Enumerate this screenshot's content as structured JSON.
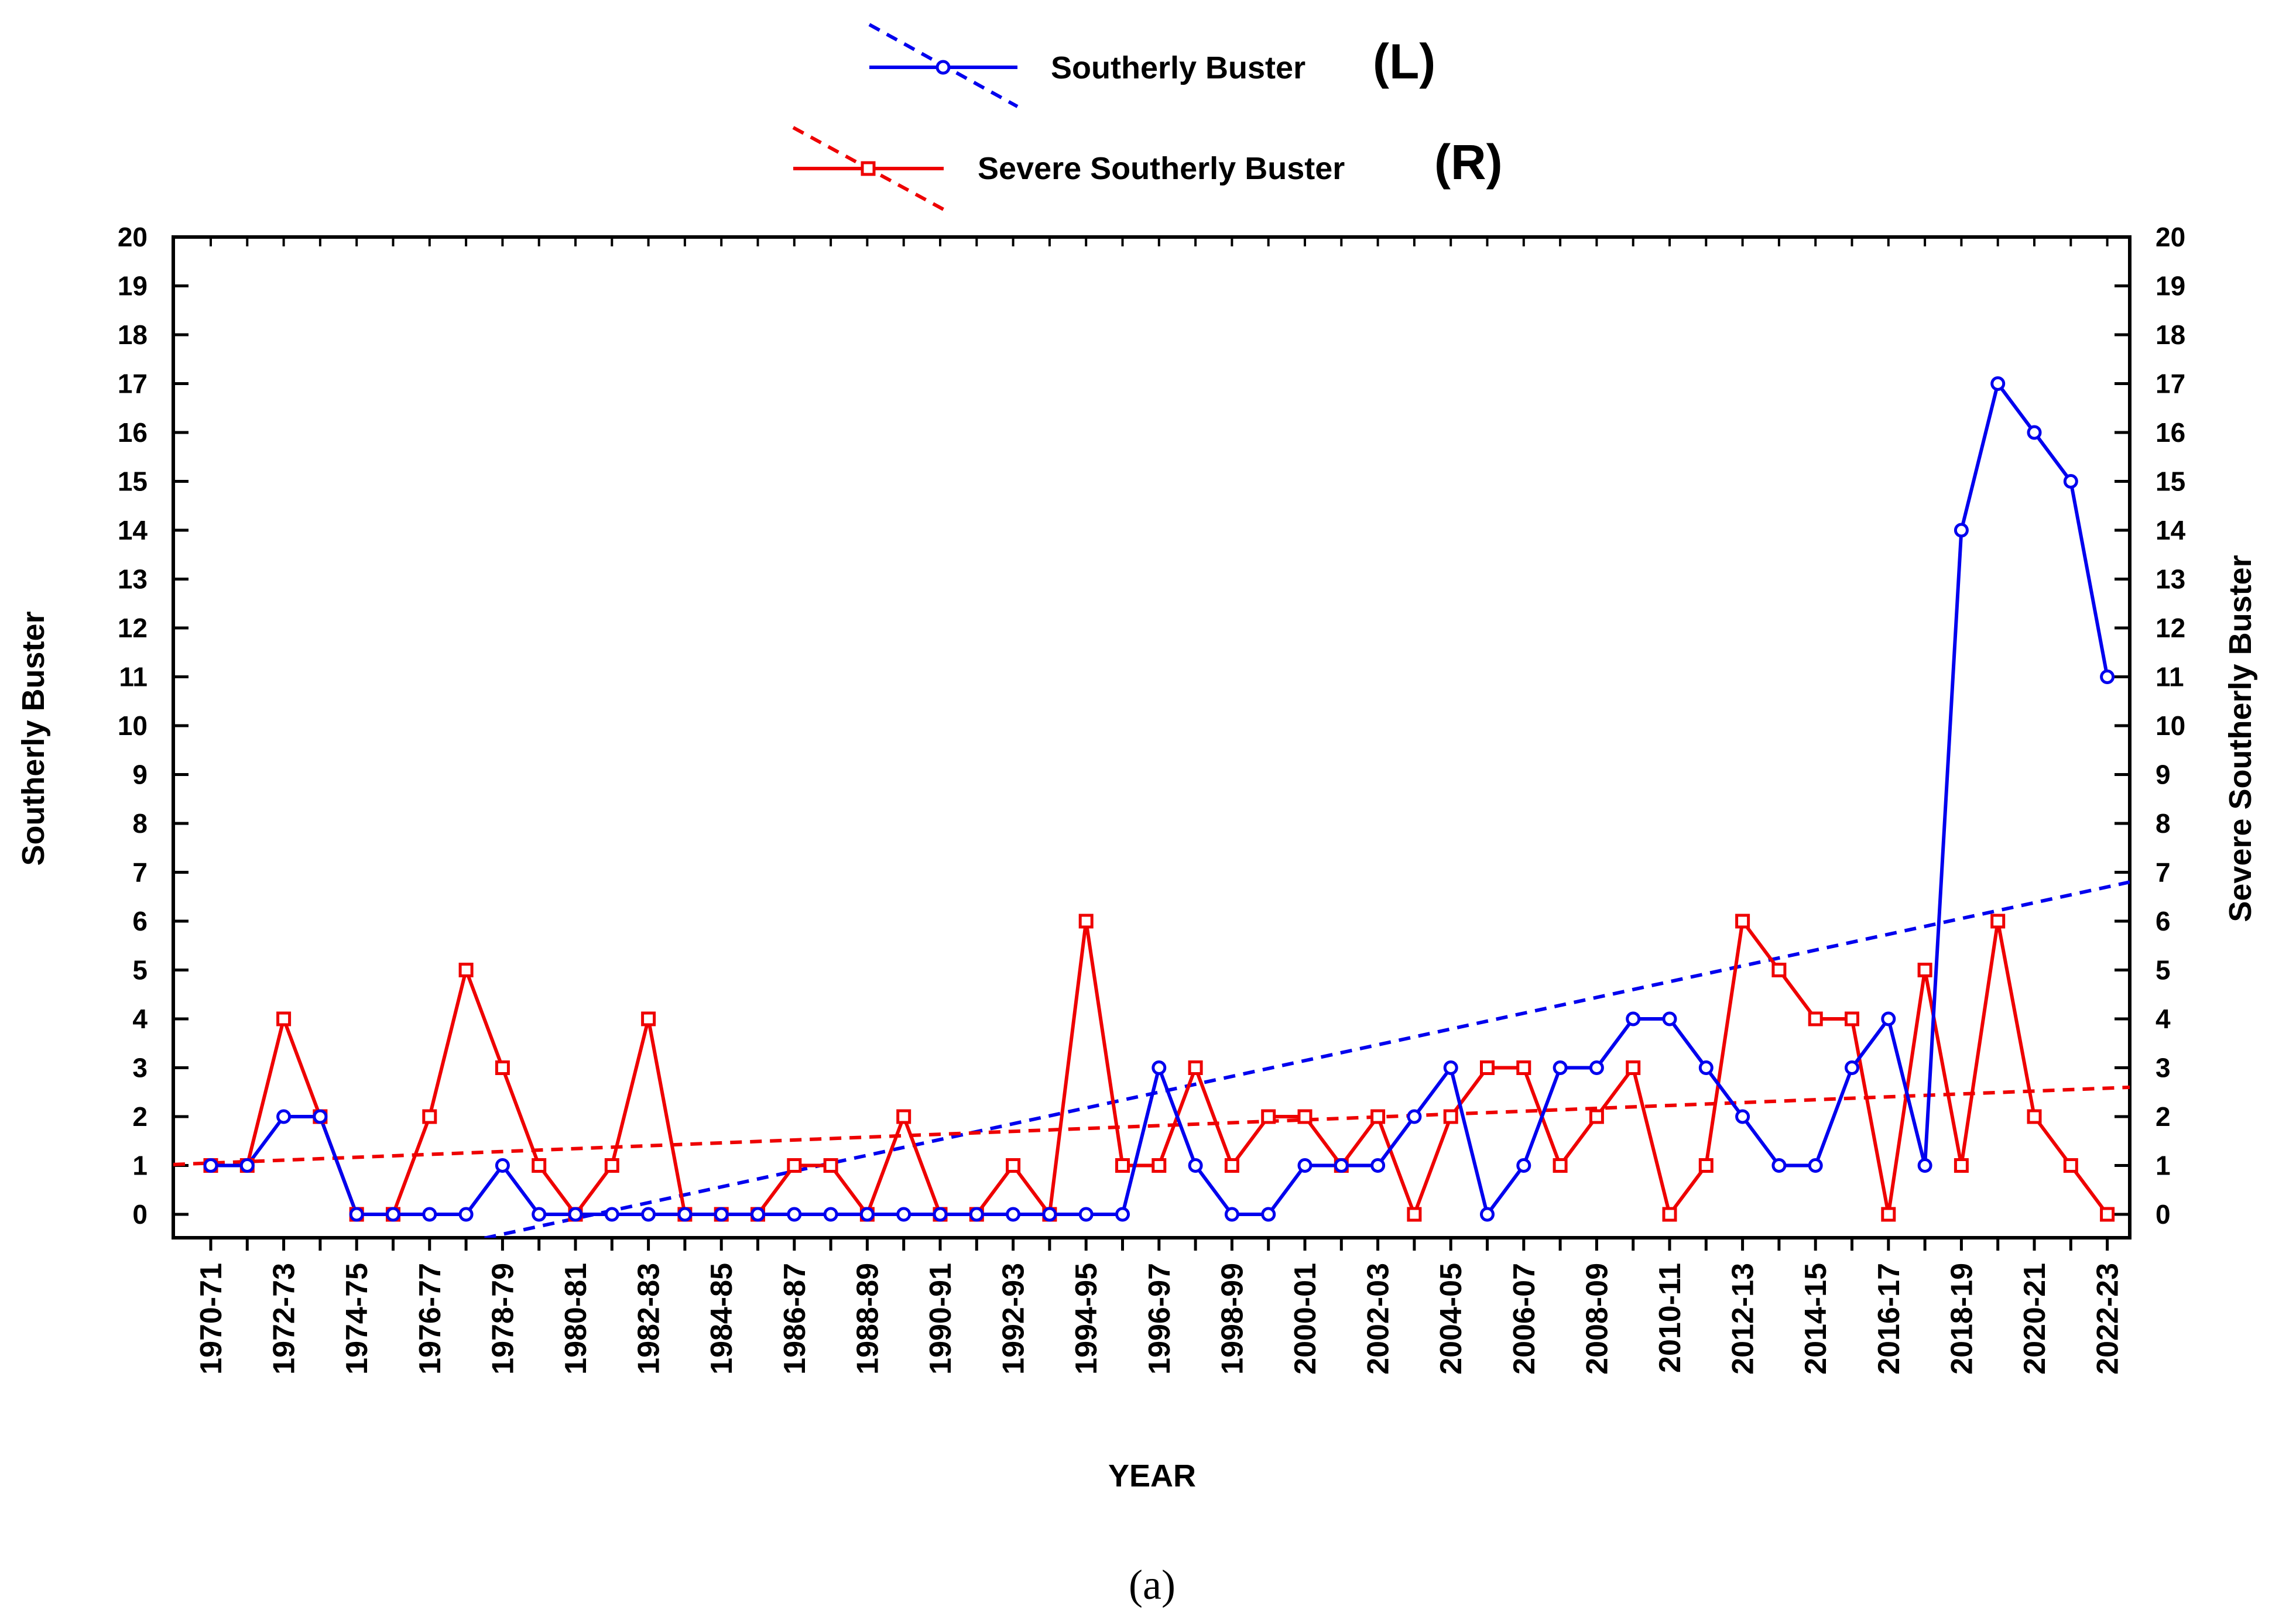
{
  "chart_data": {
    "type": "line",
    "categories": [
      "1970-71",
      "1971-72",
      "1972-73",
      "1973-74",
      "1974-75",
      "1975-76",
      "1976-77",
      "1977-78",
      "1978-79",
      "1979-80",
      "1980-81",
      "1981-82",
      "1982-83",
      "1983-84",
      "1984-85",
      "1985-86",
      "1986-87",
      "1987-88",
      "1988-89",
      "1989-90",
      "1990-91",
      "1991-92",
      "1992-93",
      "1993-94",
      "1994-95",
      "1995-96",
      "1996-97",
      "1997-98",
      "1998-99",
      "1999-00",
      "2000-01",
      "2001-02",
      "2002-03",
      "2003-04",
      "2004-05",
      "2005-06",
      "2006-07",
      "2007-08",
      "2008-09",
      "2009-10",
      "2010-11",
      "2011-12",
      "2012-13",
      "2013-14",
      "2014-15",
      "2015-16",
      "2016-17",
      "2017-18",
      "2018-19",
      "2019-20",
      "2020-21",
      "2021-22",
      "2022-23"
    ],
    "tick_labels": [
      "1970-71",
      "1972-73",
      "1974-75",
      "1976-77",
      "1978-79",
      "1980-81",
      "1982-83",
      "1984-85",
      "1986-87",
      "1988-89",
      "1990-91",
      "1992-93",
      "1994-95",
      "1996-97",
      "1998-99",
      "2000-01",
      "2002-03",
      "2004-05",
      "2006-07",
      "2008-09",
      "2010-11",
      "2012-13",
      "2014-15",
      "2016-17",
      "2018-19",
      "2020-21",
      "2022-23"
    ],
    "series": [
      {
        "name": "Southerly Buster",
        "axis": "L",
        "color": "#0000ee",
        "marker": "circle",
        "values": [
          1,
          1,
          2,
          2,
          0,
          0,
          0,
          0,
          1,
          0,
          0,
          0,
          0,
          0,
          0,
          0,
          0,
          0,
          0,
          0,
          0,
          0,
          0,
          0,
          0,
          0,
          3,
          1,
          0,
          0,
          1,
          1,
          1,
          2,
          3,
          0,
          1,
          3,
          3,
          4,
          4,
          3,
          2,
          1,
          1,
          3,
          4,
          1,
          14,
          17,
          16,
          15,
          11
        ],
        "trend": {
          "start": -1.7,
          "end": 6.8
        }
      },
      {
        "name": "Severe Southerly Buster",
        "axis": "R",
        "color": "#ee0000",
        "marker": "square",
        "values": [
          1,
          1,
          4,
          2,
          0,
          0,
          2,
          5,
          3,
          1,
          0,
          1,
          4,
          0,
          0,
          0,
          1,
          1,
          0,
          2,
          0,
          0,
          1,
          0,
          6,
          1,
          1,
          3,
          1,
          2,
          2,
          1,
          2,
          0,
          2,
          3,
          3,
          1,
          2,
          3,
          0,
          1,
          6,
          5,
          4,
          4,
          0,
          5,
          1,
          6,
          2,
          1,
          0
        ],
        "trend": {
          "start": 1.05,
          "end": 2.6
        }
      }
    ],
    "legend": [
      {
        "label": "Southerly Buster",
        "suffix": "(L)"
      },
      {
        "label": "Severe Southerly Buster",
        "suffix": "(R)"
      }
    ],
    "legend_position": "top-center",
    "xlabel": "YEAR",
    "ylabel_left": "Southerly Buster",
    "ylabel_right": "Severe Southerly Buster",
    "ylim": [
      -0.5,
      20
    ],
    "yticks": [
      0,
      1,
      2,
      3,
      4,
      5,
      6,
      7,
      8,
      9,
      10,
      11,
      12,
      13,
      14,
      15,
      16,
      17,
      18,
      19,
      20
    ],
    "grid": false,
    "caption": "(a)"
  }
}
